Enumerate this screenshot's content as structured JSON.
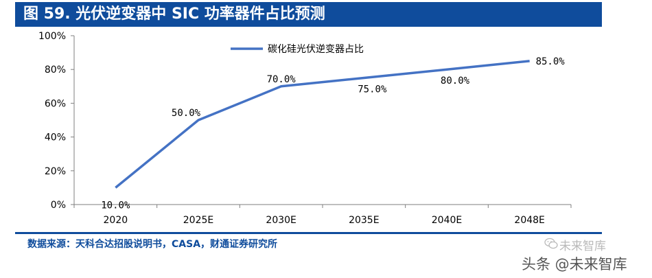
{
  "header": {
    "title": "图 59. 光伏逆变器中 SIC 功率器件占比预测"
  },
  "footer": {
    "source": "数据来源：天科合达招股说明书，CASA，财通证券研究所",
    "watermark_wechat": "未来智库",
    "watermark_toutiao": "头条 @未来智库"
  },
  "colors": {
    "header_bg": "#0f4c9c",
    "line": "#4472c4",
    "source_text": "#0f4c9c"
  },
  "chart_data": {
    "type": "line",
    "categories": [
      "2020",
      "2025E",
      "2030E",
      "2035E",
      "2040E",
      "2048E"
    ],
    "series": [
      {
        "name": "碳化硅光伏逆变器占比",
        "values": [
          10,
          50,
          70,
          75,
          80,
          85
        ],
        "data_labels": [
          "10.0%",
          "50.0%",
          "70.0%",
          "75.0%",
          "80.0%",
          "85.0%"
        ]
      }
    ],
    "yticks": [
      "0%",
      "20%",
      "40%",
      "60%",
      "80%",
      "100%"
    ],
    "ylim": [
      0,
      100
    ],
    "legend_position": "top",
    "grid": false
  }
}
